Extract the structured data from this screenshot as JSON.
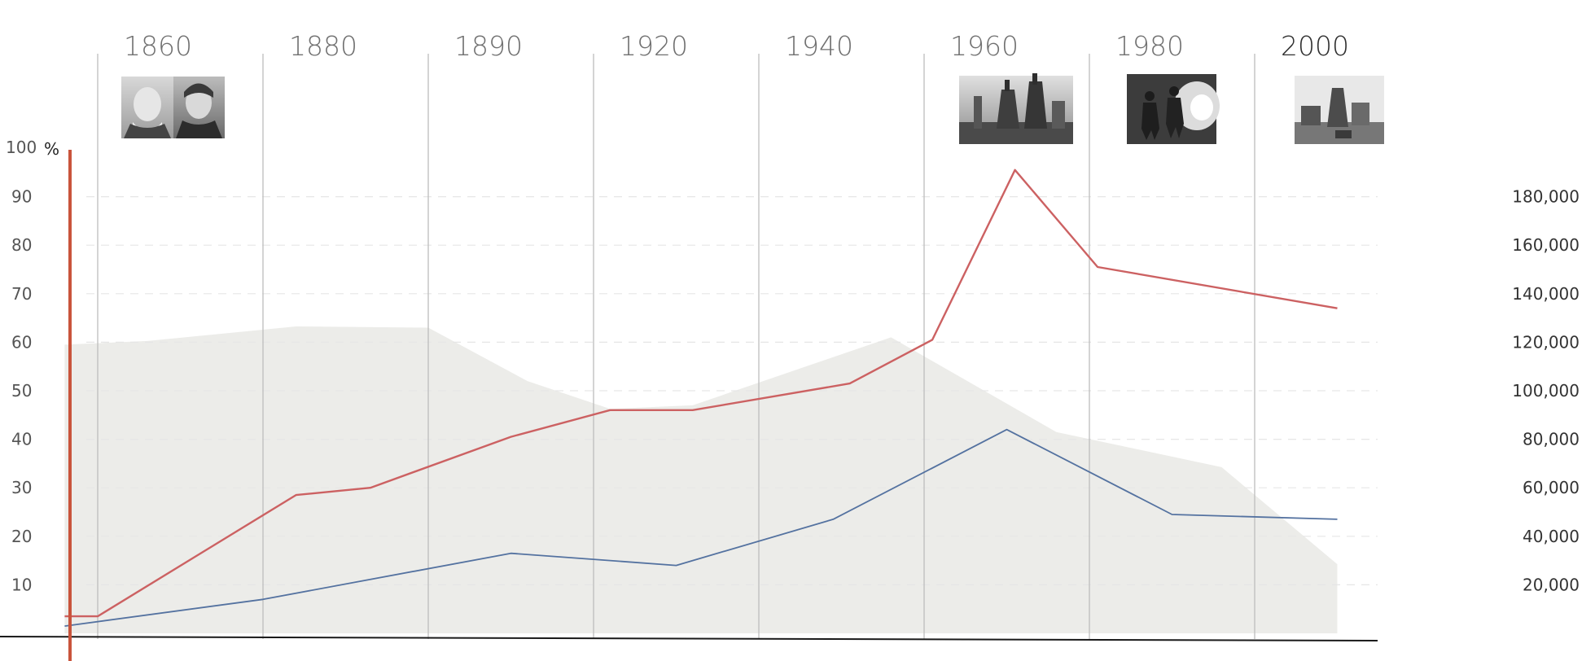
{
  "chart_data": {
    "type": "line",
    "title": "",
    "xlabel": "",
    "ylabel": "%",
    "ylim": [
      0,
      100
    ],
    "y_ticks": [
      10,
      20,
      30,
      40,
      50,
      60,
      70,
      80,
      90,
      100
    ],
    "y2lim": [
      0,
      200000
    ],
    "y2_ticks": [
      "20,000",
      "40,000",
      "60,000",
      "80,000",
      "100,000",
      "120,000",
      "140,000",
      "160,000",
      "180,000"
    ],
    "y2_tick_values": [
      20000,
      40000,
      60000,
      80000,
      100000,
      120000,
      140000,
      160000,
      180000
    ],
    "grid": true,
    "legend": "none",
    "eras": [
      "1860",
      "1880",
      "1890",
      "1920",
      "1940",
      "1960",
      "1980",
      "2000"
    ],
    "x_domain": [
      0,
      8.3
    ],
    "area_series": {
      "axis": "right",
      "color": "#ecece9",
      "points": [
        [
          -0.2,
          119000
        ],
        [
          0.3,
          120500
        ],
        [
          1.2,
          126500
        ],
        [
          2.0,
          126000
        ],
        [
          2.6,
          104000
        ],
        [
          3.1,
          92500
        ],
        [
          3.6,
          94000
        ],
        [
          4.8,
          122000
        ],
        [
          5.8,
          83000
        ],
        [
          6.8,
          68500
        ],
        [
          7.5,
          28500
        ],
        [
          7.5,
          0
        ],
        [
          -0.2,
          0
        ]
      ]
    },
    "series": [
      {
        "axis": "left",
        "color": "#cc6162",
        "points": [
          [
            -0.2,
            3.5
          ],
          [
            0.0,
            3.5
          ],
          [
            1.2,
            28.5
          ],
          [
            1.65,
            30
          ],
          [
            2.5,
            40.5
          ],
          [
            3.1,
            46
          ],
          [
            3.6,
            46
          ],
          [
            4.55,
            51.5
          ],
          [
            5.05,
            60.5
          ],
          [
            5.55,
            95.5
          ],
          [
            6.05,
            75.5
          ],
          [
            7.5,
            67
          ]
        ]
      },
      {
        "axis": "left",
        "color": "#5472a0",
        "points": [
          [
            -0.2,
            1.5
          ],
          [
            1.0,
            7
          ],
          [
            2.5,
            16.5
          ],
          [
            3.5,
            14
          ],
          [
            4.45,
            23.5
          ],
          [
            5.5,
            42
          ],
          [
            6.5,
            24.5
          ],
          [
            7.5,
            23.5
          ]
        ]
      }
    ],
    "photos": [
      {
        "name": "portrait-photo",
        "era_index": 0,
        "position": "above-chart"
      },
      {
        "name": "blast-furnace-photo",
        "era_index": 5,
        "position": "above-chart"
      },
      {
        "name": "steelworkers-photo",
        "era_index": 6,
        "position": "above-chart"
      },
      {
        "name": "plant-photo",
        "era_index": 7,
        "position": "above-chart"
      }
    ],
    "colors": {
      "left_axis": "#c9543c",
      "baseline": "#1a1a1a",
      "era_line": "#bdbdbd",
      "gridline": "#e6e6e6"
    }
  }
}
